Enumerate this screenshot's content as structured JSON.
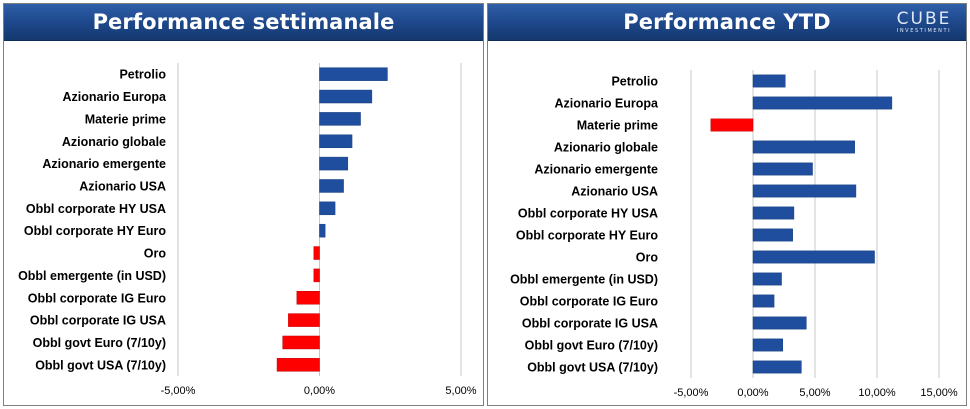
{
  "colors": {
    "positive": "#1f4e9e",
    "negative": "#ff0000",
    "header": "#1f4a8f",
    "grid": "#c8c8c8"
  },
  "logo": {
    "word": "CUBE",
    "sub": "INVESTIMENTI"
  },
  "chart_data": [
    {
      "type": "bar",
      "orientation": "horizontal",
      "title": "Performance settimanale",
      "categories": [
        "Petrolio",
        "Azionario Europa",
        "Materie prime",
        "Azionario globale",
        "Azionario emergente",
        "Azionario USA",
        "Obbl corporate HY USA",
        "Obbl corporate HY Euro",
        "Oro",
        "Obbl emergente (in USD)",
        "Obbl corporate IG Euro",
        "Obbl corporate IG USA",
        "Obbl govt Euro (7/10y)",
        "Obbl govt USA (7/10y)"
      ],
      "values": [
        2.4,
        1.85,
        1.45,
        1.15,
        1.0,
        0.85,
        0.55,
        0.2,
        -0.2,
        -0.2,
        -0.8,
        -1.1,
        -1.3,
        -1.5
      ],
      "xlim": [
        -5,
        5
      ],
      "ticks": [
        -5,
        0,
        5
      ],
      "tick_labels": [
        "-5,00%",
        "0,00%",
        "5,00%"
      ],
      "grid": true
    },
    {
      "type": "bar",
      "orientation": "horizontal",
      "title": "Performance YTD",
      "categories": [
        "Petrolio",
        "Azionario Europa",
        "Materie prime",
        "Azionario globale",
        "Azionario emergente",
        "Azionario USA",
        "Obbl corporate HY USA",
        "Obbl corporate HY Euro",
        "Oro",
        "Obbl emergente (in USD)",
        "Obbl corporate IG Euro",
        "Obbl corporate IG USA",
        "Obbl govt Euro (7/10y)",
        "Obbl govt USA (7/10y)"
      ],
      "values": [
        2.6,
        11.2,
        -3.4,
        8.2,
        4.8,
        8.3,
        3.3,
        3.2,
        9.8,
        2.3,
        1.7,
        4.3,
        2.4,
        3.9
      ],
      "xlim": [
        -5,
        15
      ],
      "ticks": [
        -5,
        0,
        5,
        10,
        15
      ],
      "tick_labels": [
        "-5,00%",
        "0,00%",
        "5,00%",
        "10,00%",
        "15,00%"
      ],
      "grid": true
    }
  ]
}
